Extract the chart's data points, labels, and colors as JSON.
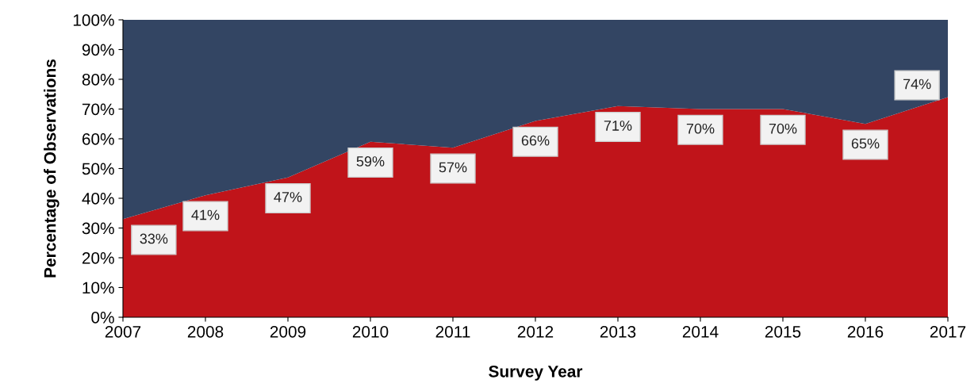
{
  "chart_data": {
    "type": "area",
    "stacked": true,
    "xlabel": "Survey Year",
    "ylabel": "Percentage of Observations",
    "x": [
      2007,
      2008,
      2009,
      2010,
      2011,
      2012,
      2013,
      2014,
      2015,
      2016,
      2017
    ],
    "series": [
      {
        "color": "#c0141a",
        "values": [
          33,
          41,
          47,
          59,
          57,
          66,
          71,
          70,
          70,
          65,
          74
        ],
        "value_labels": [
          "33%",
          "41%",
          "47%",
          "59%",
          "57%",
          "66%",
          "71%",
          "70%",
          "70%",
          "65%",
          "74%"
        ]
      },
      {
        "color": "#334563",
        "values": [
          67,
          59,
          53,
          41,
          43,
          34,
          29,
          30,
          30,
          35,
          26
        ]
      }
    ],
    "xlim": [
      2007,
      2017
    ],
    "xticks": [
      2007,
      2008,
      2009,
      2010,
      2011,
      2012,
      2013,
      2014,
      2015,
      2016,
      2017
    ],
    "ylim": [
      0,
      100
    ],
    "yticks": [
      {
        "value": 0,
        "label": "0%"
      },
      {
        "value": 10,
        "label": "10%"
      },
      {
        "value": 20,
        "label": "20%"
      },
      {
        "value": 30,
        "label": "30%"
      },
      {
        "value": 40,
        "label": "40%"
      },
      {
        "value": 50,
        "label": "50%"
      },
      {
        "value": 60,
        "label": "60%"
      },
      {
        "value": 70,
        "label": "70%"
      },
      {
        "value": 80,
        "label": "80%"
      },
      {
        "value": 90,
        "label": "90%"
      },
      {
        "value": 100,
        "label": "100%"
      }
    ],
    "grid": false
  }
}
